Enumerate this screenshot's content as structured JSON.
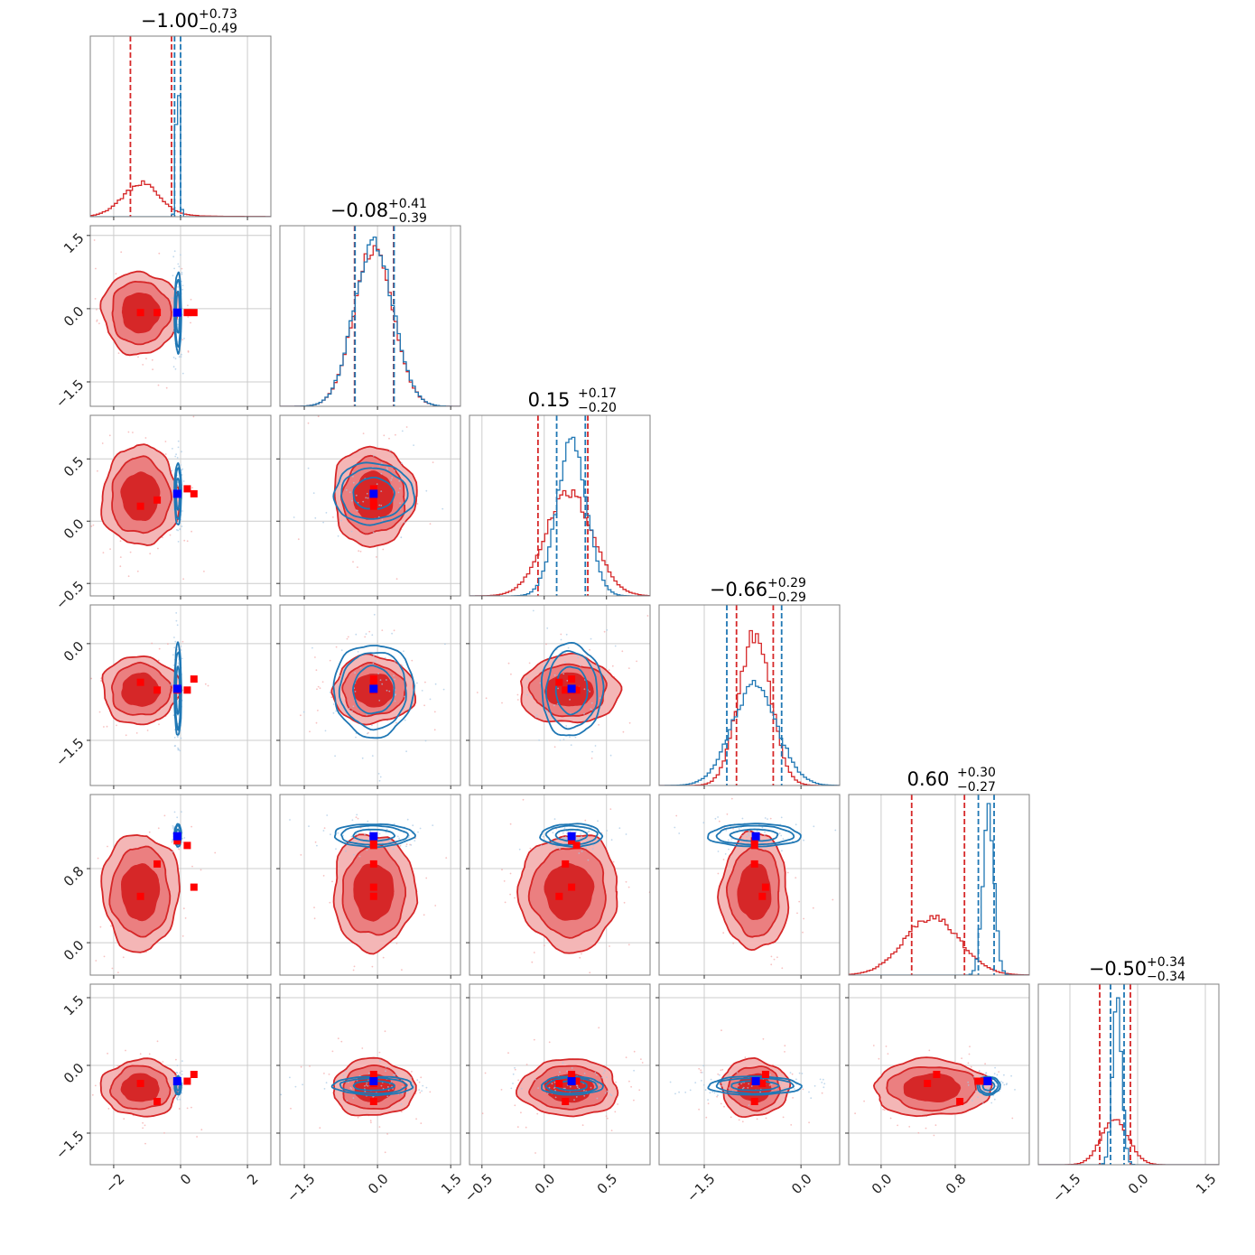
{
  "chart_data": {
    "type": "corner",
    "colors": {
      "red": "#d62728",
      "blue": "#1f77b4",
      "red_marker": "#ff0000",
      "blue_marker": "#0000ff",
      "grid": "#cccccc",
      "frame": "#808080"
    },
    "params": [
      {
        "index": 0,
        "range": [
          -2.7,
          2.7
        ],
        "ticks": [
          -2,
          0,
          2
        ],
        "tick_labels": [
          "−2",
          "0",
          "2"
        ],
        "title": {
          "value": "−1.00",
          "upper": "+0.73",
          "lower": "−0.49"
        },
        "red": {
          "mean": -1.2,
          "sigma": 0.55,
          "peak": 0.17,
          "tail": 0.35,
          "q": [
            -1.5,
            -0.27
          ]
        },
        "blue": {
          "mean": -0.08,
          "sigma": 0.05,
          "peak": 0.9,
          "q": [
            -0.18,
            0.0
          ]
        }
      },
      {
        "index": 1,
        "range": [
          -2.0,
          1.7
        ],
        "ticks": [
          -1.5,
          0.0,
          1.5
        ],
        "tick_labels": [
          "−1.5",
          "0.0",
          "1.5"
        ],
        "title": {
          "value": "−0.08",
          "upper": "+0.41",
          "lower": "−0.39"
        },
        "red": {
          "mean": -0.08,
          "sigma": 0.4,
          "peak": 0.88,
          "q": [
            -0.47,
            0.33
          ]
        },
        "blue": {
          "mean": -0.08,
          "sigma": 0.4,
          "peak": 0.9,
          "q": [
            -0.46,
            0.34
          ]
        }
      },
      {
        "index": 2,
        "range": [
          -0.6,
          0.85
        ],
        "ticks": [
          -0.5,
          0.0,
          0.5
        ],
        "tick_labels": [
          "−0.5",
          "0.0",
          "0.5"
        ],
        "title": {
          "value": "0.15",
          "upper": "+0.17",
          "lower": "−0.20"
        },
        "red": {
          "mean": 0.2,
          "sigma": 0.19,
          "peak": 0.57,
          "q": [
            -0.05,
            0.35
          ]
        },
        "blue": {
          "mean": 0.22,
          "sigma": 0.12,
          "peak": 0.84,
          "q": [
            0.1,
            0.33
          ]
        }
      },
      {
        "index": 3,
        "range": [
          -2.2,
          0.6
        ],
        "ticks": [
          -1.5,
          0.0
        ],
        "tick_labels": [
          "−1.5",
          "0.0"
        ],
        "title": {
          "value": "−0.66",
          "upper": "+0.29",
          "lower": "−0.29"
        },
        "red": {
          "mean": -0.72,
          "sigma": 0.25,
          "peak": 0.84,
          "q": [
            -1.0,
            -0.43
          ]
        },
        "blue": {
          "mean": -0.72,
          "sigma": 0.35,
          "peak": 0.55,
          "q": [
            -1.15,
            -0.3
          ]
        }
      },
      {
        "index": 4,
        "range": [
          -0.35,
          1.6
        ],
        "ticks": [
          0.0,
          0.8
        ],
        "tick_labels": [
          "0.0",
          "0.8"
        ],
        "title": {
          "value": "0.60",
          "upper": "+0.30",
          "lower": "−0.27"
        },
        "red": {
          "mean": 0.55,
          "sigma": 0.3,
          "peak": 0.32,
          "q": [
            0.33,
            0.9
          ]
        },
        "blue": {
          "mean": 1.16,
          "sigma": 0.06,
          "peak": 0.91,
          "q": [
            1.05,
            1.22
          ]
        }
      },
      {
        "index": 5,
        "range": [
          -2.2,
          1.8
        ],
        "ticks": [
          -1.5,
          0.0,
          1.5
        ],
        "tick_labels": [
          "−1.5",
          "0.0",
          "1.5"
        ],
        "title": {
          "value": "−0.50",
          "upper": "+0.34",
          "lower": "−0.34"
        },
        "red": {
          "mean": -0.5,
          "sigma": 0.3,
          "peak": 0.25,
          "q": [
            -0.84,
            -0.16
          ]
        },
        "blue": {
          "mean": -0.45,
          "sigma": 0.1,
          "peak": 0.93,
          "q": [
            -0.6,
            -0.3
          ]
        }
      }
    ],
    "y_axes": [
      {
        "row": 1,
        "param": 1,
        "ticks": [
          1.5,
          0.0,
          -1.5
        ],
        "tick_labels": [
          "1.5",
          "0.0",
          "−1.5"
        ]
      },
      {
        "row": 2,
        "param": 2,
        "ticks": [
          0.5,
          0.0,
          -0.5
        ],
        "tick_labels": [
          "0.5",
          "0.0",
          "−0.5"
        ]
      },
      {
        "row": 3,
        "param": 3,
        "ticks": [
          0.0,
          -1.5
        ],
        "tick_labels": [
          "0.0",
          "−1.5"
        ]
      },
      {
        "row": 4,
        "param": 4,
        "ticks": [
          0.8,
          0.0
        ],
        "tick_labels": [
          "0.8",
          "0.0"
        ]
      },
      {
        "row": 5,
        "param": 5,
        "ticks": [
          1.5,
          0.0,
          -1.5
        ],
        "tick_labels": [
          "1.5",
          "0.0",
          "−1.5"
        ]
      }
    ],
    "red_markers_x": [
      -1.2,
      -0.7,
      0.4,
      0.2,
      -0.1
    ],
    "red_markers": [
      [
        -1.2,
        -0.08,
        0.12,
        -0.6,
        0.5,
        -0.4
      ],
      [
        -0.7,
        -0.08,
        0.17,
        -0.72,
        0.85,
        -0.8
      ],
      [
        0.4,
        -0.08,
        0.22,
        -0.55,
        0.6,
        -0.2
      ],
      [
        0.2,
        -0.08,
        0.26,
        -0.72,
        1.05,
        -0.35
      ],
      [
        -0.1,
        -0.08,
        0.22,
        -0.72,
        1.1,
        -0.35
      ]
    ],
    "blue_marker": [
      -0.1,
      -0.08,
      0.22,
      -0.7,
      1.15,
      -0.35
    ],
    "red_marker_overrides": {
      "1,2": [
        [
          -0.08,
          0.22
        ],
        [
          -0.08,
          0.12
        ]
      ],
      "3,5": [
        [
          -0.72,
          -0.35
        ],
        [
          -0.72,
          -0.8
        ],
        [
          -0.72,
          -0.55
        ]
      ]
    }
  }
}
